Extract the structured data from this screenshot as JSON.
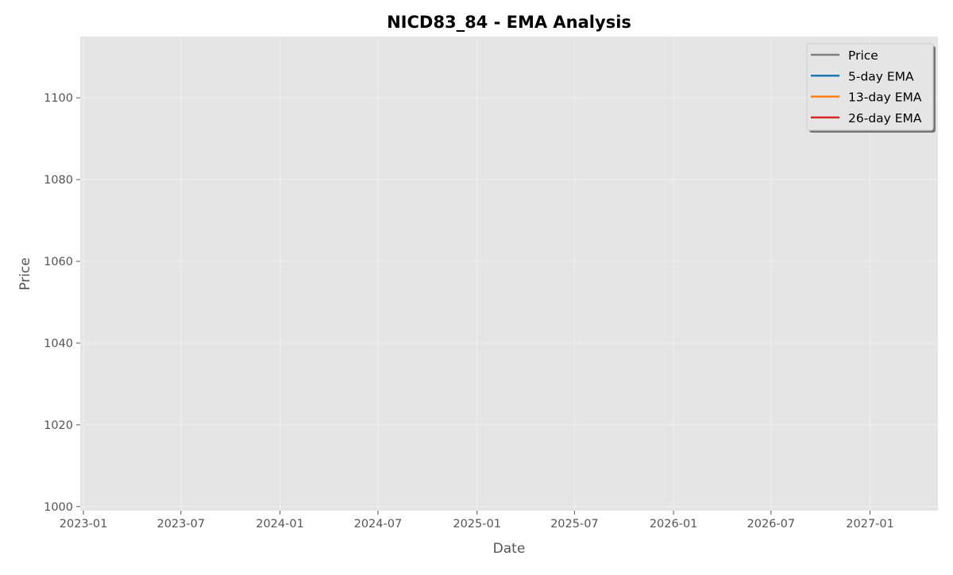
{
  "chart_data": {
    "type": "line",
    "title": "NICD83_84 - EMA Analysis",
    "xlabel": "Date",
    "ylabel": "Price",
    "xlim": [
      "2022-12-26",
      "2027-05-07"
    ],
    "ylim": [
      999,
      1115
    ],
    "x_ticks": [
      "2023-01",
      "2023-07",
      "2024-01",
      "2024-07",
      "2025-01",
      "2025-07",
      "2026-01",
      "2026-07",
      "2027-01"
    ],
    "y_ticks": [
      1000,
      1020,
      1040,
      1060,
      1080,
      1100
    ],
    "grid": true,
    "legend_position": "top-right",
    "series": [
      {
        "name": "Price",
        "color": "#808080",
        "values": []
      },
      {
        "name": "5-day EMA",
        "color": "#1f77b4",
        "values": []
      },
      {
        "name": "13-day EMA",
        "color": "#ff7f0e",
        "values": []
      },
      {
        "name": "26-day EMA",
        "color": "#d62728",
        "values": []
      }
    ],
    "background_color": "#e5e5e5",
    "grid_color": "#f0f0f0"
  }
}
